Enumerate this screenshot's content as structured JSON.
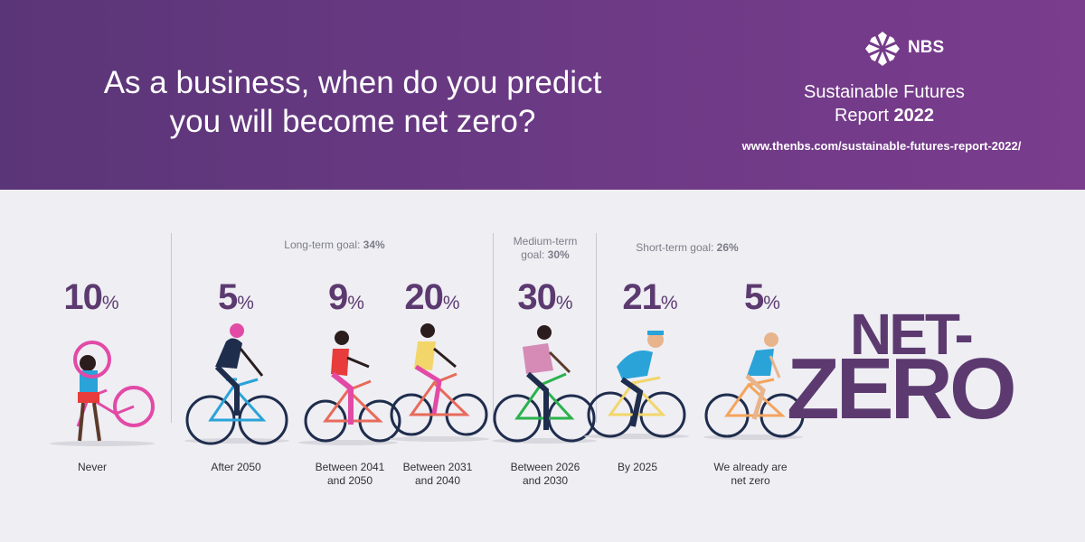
{
  "header": {
    "question": "As a business, when do you predict you will become net zero?",
    "brand": "NBS",
    "report_title_line1": "Sustainable Futures",
    "report_title_line2_prefix": "Report ",
    "report_title_year": "2022",
    "url": "www.thenbs.com/sustainable-futures-report-2022/"
  },
  "colors": {
    "header_start": "#5a3577",
    "header_end": "#7a3c8d",
    "accent": "#5c3a70",
    "background": "#eeeef3"
  },
  "groups": [
    {
      "label": "Long-term goal:",
      "value": "34%"
    },
    {
      "label_line1": "Medium-term",
      "label_line2": "goal:",
      "value": "30%"
    },
    {
      "label": "Short-term goal:",
      "value": "26%"
    }
  ],
  "chart_data": {
    "type": "table",
    "title": "As a business, when do you predict you will become net zero?",
    "categories": [
      "Never",
      "After 2050",
      "Between 2041 and 2050",
      "Between 2031 and 2040",
      "Between 2026 and 2030",
      "By 2025",
      "We already are net zero"
    ],
    "values": [
      10,
      5,
      9,
      20,
      30,
      21,
      5
    ],
    "unit": "%",
    "group_totals": {
      "Long-term goal": 34,
      "Medium-term goal": 30,
      "Short-term goal": 26
    }
  },
  "items": [
    {
      "value": "10",
      "unit": "%",
      "line1": "Never",
      "line2": ""
    },
    {
      "value": "5",
      "unit": "%",
      "line1": "After 2050",
      "line2": ""
    },
    {
      "value": "9",
      "unit": "%",
      "line1": "Between 2041",
      "line2": "and 2050"
    },
    {
      "value": "20",
      "unit": "%",
      "line1": "Between 2031",
      "line2": "and 2040"
    },
    {
      "value": "30",
      "unit": "%",
      "line1": "Between 2026",
      "line2": "and 2030"
    },
    {
      "value": "21",
      "unit": "%",
      "line1": "By 2025",
      "line2": ""
    },
    {
      "value": "5",
      "unit": "%",
      "line1": "We already are",
      "line2": "net zero"
    }
  ],
  "netzero": {
    "line1": "NET-",
    "line2": "ZERO"
  }
}
